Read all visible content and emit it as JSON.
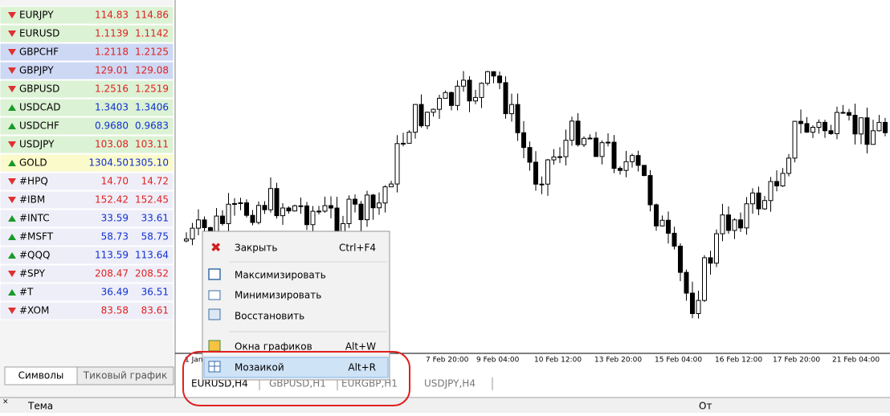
{
  "market_watch": {
    "rows": [
      {
        "symbol": "EURJPY",
        "bid": "114.83",
        "ask": "114.86",
        "trend": "down",
        "color": "#dcf2d4"
      },
      {
        "symbol": "EURUSD",
        "bid": "1.1139",
        "ask": "1.1142",
        "trend": "down",
        "color": "#dcf2d4"
      },
      {
        "symbol": "GBPCHF",
        "bid": "1.2118",
        "ask": "1.2125",
        "trend": "down",
        "color": "#cdd8f4"
      },
      {
        "symbol": "GBPJPY",
        "bid": "129.01",
        "ask": "129.08",
        "trend": "down",
        "color": "#cdd8f4"
      },
      {
        "symbol": "GBPUSD",
        "bid": "1.2516",
        "ask": "1.2519",
        "trend": "down",
        "color": "#dcf2d4"
      },
      {
        "symbol": "USDCAD",
        "bid": "1.3403",
        "ask": "1.3406",
        "trend": "up",
        "color": "#dcf2d4"
      },
      {
        "symbol": "USDCHF",
        "bid": "0.9680",
        "ask": "0.9683",
        "trend": "up",
        "color": "#dcf2d4"
      },
      {
        "symbol": "USDJPY",
        "bid": "103.08",
        "ask": "103.11",
        "trend": "down",
        "color": "#dcf2d4"
      },
      {
        "symbol": "GOLD",
        "bid": "1304.50",
        "ask": "1305.10",
        "trend": "up",
        "color": "#fafacb"
      },
      {
        "symbol": "#HPQ",
        "bid": "14.70",
        "ask": "14.72",
        "trend": "down",
        "color": "#eeeef8"
      },
      {
        "symbol": "#IBM",
        "bid": "152.42",
        "ask": "152.45",
        "trend": "down",
        "color": "#eeeef8"
      },
      {
        "symbol": "#INTC",
        "bid": "33.59",
        "ask": "33.61",
        "trend": "up",
        "color": "#eeeef8"
      },
      {
        "symbol": "#MSFT",
        "bid": "58.73",
        "ask": "58.75",
        "trend": "up",
        "color": "#eeeef8"
      },
      {
        "symbol": "#QQQ",
        "bid": "113.59",
        "ask": "113.64",
        "trend": "up",
        "color": "#eeeef8"
      },
      {
        "symbol": "#SPY",
        "bid": "208.47",
        "ask": "208.52",
        "trend": "down",
        "color": "#eeeef8"
      },
      {
        "symbol": "#T",
        "bid": "36.49",
        "ask": "36.51",
        "trend": "up",
        "color": "#eeeef8"
      },
      {
        "symbol": "#XOM",
        "bid": "83.58",
        "ask": "83.61",
        "trend": "down",
        "color": "#eeeef8"
      }
    ],
    "tabs": [
      "Символы",
      "Тиковый график"
    ]
  },
  "time_axis": [
    "1 Jan",
    "7 Feb 20:00",
    "9 Feb 04:00",
    "10 Feb 12:00",
    "13 Feb 20:00",
    "15 Feb 04:00",
    "16 Feb 12:00",
    "17 Feb 20:00",
    "21 Feb 04:00"
  ],
  "chart_tabs": [
    "EURUSD,H4",
    "GBPUSD,H1",
    "EURGBP,H1",
    "USDJPY,H4"
  ],
  "context_menu": [
    {
      "label": "Закрыть",
      "shortcut": "Ctrl+F4"
    },
    {
      "label": "Максимизировать"
    },
    {
      "label": "Минимизировать"
    },
    {
      "label": "Восстановить"
    },
    {
      "label": "Окна графиков",
      "shortcut": "Alt+W"
    },
    {
      "label": "Мозаикой",
      "shortcut": "Alt+R"
    }
  ],
  "terminal": {
    "columns": [
      "Тема",
      "От"
    ]
  }
}
